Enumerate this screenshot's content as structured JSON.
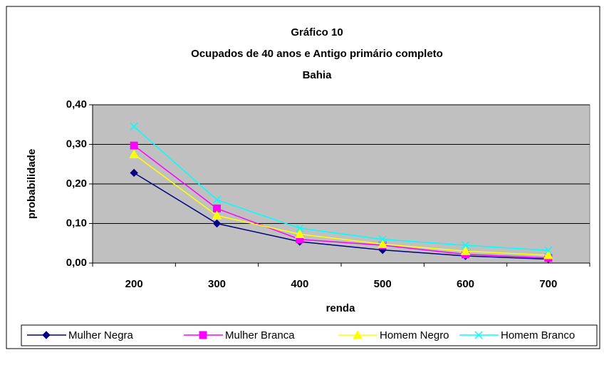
{
  "chart_data": {
    "type": "line",
    "title": [
      "Gráfico 10",
      "Ocupados de 40 anos  e Antigo primário completo",
      "Bahia"
    ],
    "x_label": "renda",
    "y_label": "probabilidade",
    "categories": [
      "200",
      "300",
      "400",
      "500",
      "600",
      "700"
    ],
    "series": [
      {
        "name": "Mulher Negra",
        "color": "#000080",
        "marker": "diamond",
        "values": [
          0.228,
          0.1,
          0.054,
          0.033,
          0.018,
          0.01
        ]
      },
      {
        "name": "Mulher Branca",
        "color": "#ff00ff",
        "marker": "square",
        "values": [
          0.297,
          0.138,
          0.06,
          0.045,
          0.022,
          0.013
        ]
      },
      {
        "name": "Homem Negro",
        "color": "#ffff00",
        "marker": "triangle",
        "values": [
          0.275,
          0.12,
          0.073,
          0.048,
          0.03,
          0.02
        ]
      },
      {
        "name": "Homem Branco",
        "color": "#00ffff",
        "marker": "x",
        "values": [
          0.345,
          0.16,
          0.088,
          0.06,
          0.045,
          0.032
        ]
      }
    ],
    "ylim": [
      0,
      0.4
    ],
    "yticks": [
      {
        "value": 0,
        "label": "0,00"
      },
      {
        "value": 0.1,
        "label": "0,10"
      },
      {
        "value": 0.2,
        "label": "0,20"
      },
      {
        "value": 0.3,
        "label": "0,30"
      },
      {
        "value": 0.4,
        "label": "0,40"
      }
    ],
    "grid": true,
    "legend": "bottom"
  }
}
